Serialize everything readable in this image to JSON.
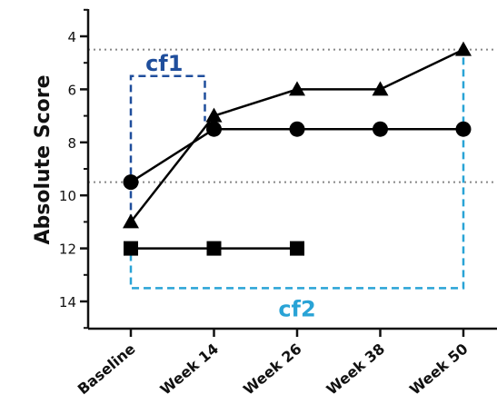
{
  "chart_data": {
    "type": "line",
    "ylabel": "Absolute Score",
    "categories": [
      "Baseline",
      "Week 14",
      "Week 26",
      "Week 38",
      "Week 50"
    ],
    "yticks": [
      4,
      6,
      8,
      10,
      12,
      14
    ],
    "ylim": [
      3,
      15
    ],
    "y_inverted": true,
    "reference_lines": [
      4.5,
      9.5
    ],
    "series": [
      {
        "marker": "circle",
        "values": [
          9.5,
          7.5,
          7.5,
          7.5,
          7.5
        ]
      },
      {
        "marker": "triangle",
        "values": [
          11,
          7,
          6,
          6,
          4.5
        ]
      },
      {
        "marker": "square",
        "values": [
          12,
          12,
          12,
          null,
          null
        ]
      }
    ],
    "annotations": [
      {
        "text": "cf1",
        "color": "#1f4e9c",
        "from": "Baseline",
        "to": "Week 14",
        "y_top": 5.5,
        "y_bottom": 11
      },
      {
        "text": "cf2",
        "color": "#29a3d6",
        "from": "Baseline",
        "to": "Week 50",
        "y_top": 4.5,
        "y_bottom": 13.5
      }
    ]
  }
}
